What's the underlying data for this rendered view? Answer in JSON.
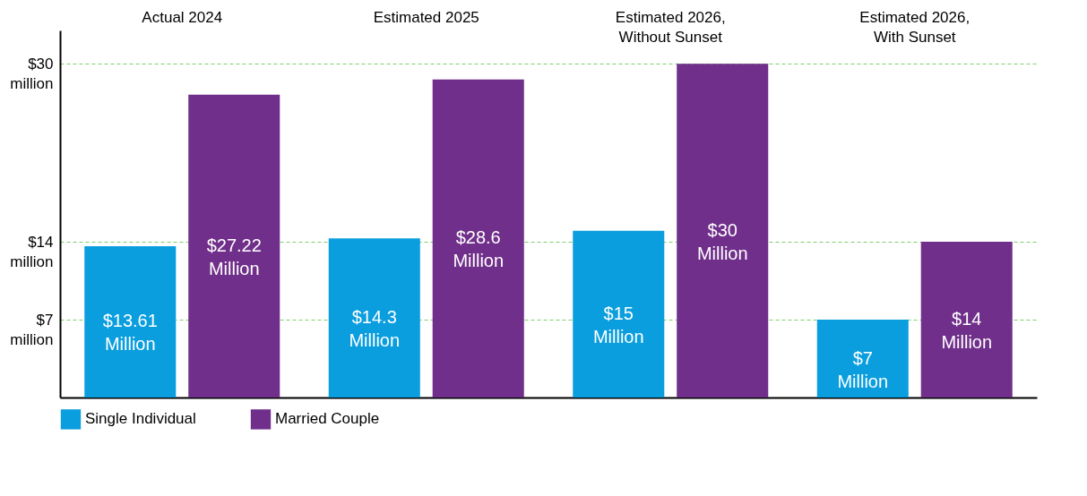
{
  "chart_data": {
    "type": "bar",
    "categories": [
      "Actual 2024",
      "Estimated 2025",
      "Estimated 2026, Without Sunset",
      "Estimated 2026, With Sunset"
    ],
    "series": [
      {
        "name": "Single Individual",
        "color": "#0a9ede",
        "values": [
          13.61,
          14.3,
          15,
          7
        ],
        "value_labels": [
          "$13.61 Million",
          "$14.3 Million",
          "$15 Million",
          "$7 Million"
        ]
      },
      {
        "name": "Married Couple",
        "color": "#702f8a",
        "values": [
          27.22,
          28.6,
          30,
          14
        ],
        "value_labels": [
          "$27.22 Million",
          "$28.6 Million",
          "$30 Million",
          "$14 Million"
        ]
      }
    ],
    "ylim": [
      0,
      33
    ],
    "yticks": [
      {
        "value": 7,
        "label": "$7 million"
      },
      {
        "value": 14,
        "label": "$14 million"
      },
      {
        "value": 30,
        "label": "$30 million"
      }
    ],
    "grid": "y",
    "legend": "bottom left"
  }
}
